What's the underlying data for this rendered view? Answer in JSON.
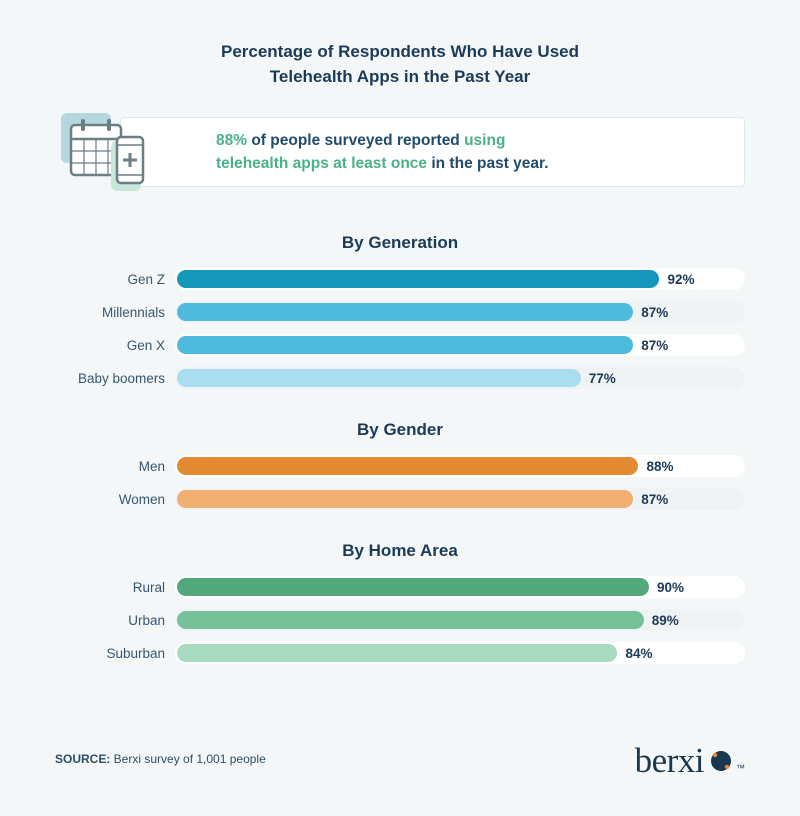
{
  "title_line1": "Percentage of Respondents Who Have Used",
  "title_line2": "Telehealth Apps in the Past Year",
  "callout": {
    "pct": "88%",
    "mid1": " of people surveyed reported ",
    "hl1": "using",
    "hl2": "telehealth apps at least once",
    "tail": " in the past year."
  },
  "bar_scale_max": 100,
  "track_colors": {
    "odd": "#ffffff",
    "even": "#f0f3f4"
  },
  "label_fontsize": 13.5,
  "value_fontsize": 13.5,
  "title_fontsize": 17,
  "sections": [
    {
      "title": "By Generation",
      "rows": [
        {
          "label": "Gen Z",
          "value": 92,
          "color": "#1596bb"
        },
        {
          "label": "Millennials",
          "value": 87,
          "color": "#4ebade"
        },
        {
          "label": "Gen X",
          "value": 87,
          "color": "#4ebade"
        },
        {
          "label": "Baby boomers",
          "value": 77,
          "color": "#a9ddf0"
        }
      ]
    },
    {
      "title": "By Gender",
      "rows": [
        {
          "label": "Men",
          "value": 88,
          "color": "#e38a33"
        },
        {
          "label": "Women",
          "value": 87,
          "color": "#efb072"
        }
      ]
    },
    {
      "title": "By Home Area",
      "rows": [
        {
          "label": "Rural",
          "value": 90,
          "color": "#53a87b"
        },
        {
          "label": "Urban",
          "value": 89,
          "color": "#76c199"
        },
        {
          "label": "Suburban",
          "value": 84,
          "color": "#a9dbc0"
        }
      ]
    }
  ],
  "source_label": "SOURCE:",
  "source_text": " Berxi survey of 1,001 people",
  "brand_name": "berxi",
  "brand_tm": "™",
  "brand_logo_colors": {
    "blob": "#1a3750",
    "dots": "#e38a33"
  },
  "icon_colors": {
    "cal_back": "#b5d8de",
    "cal_front_fill": "#ffffff",
    "cal_stroke": "#6b7d85",
    "phone_back": "#c8e8d7",
    "phone_fill": "#ffffff",
    "phone_stroke": "#6b7d85",
    "plus": "#6b7d85"
  }
}
